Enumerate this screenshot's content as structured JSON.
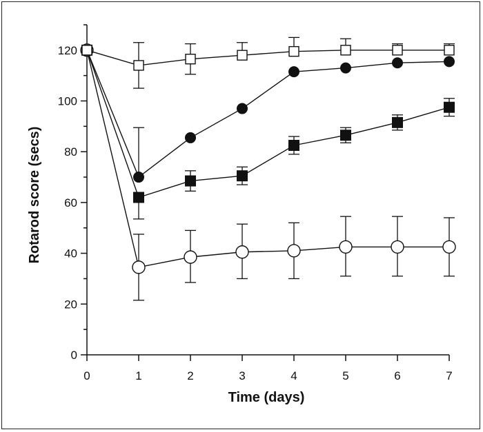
{
  "chart_data": {
    "type": "line",
    "title": "",
    "xlabel": "Time (days)",
    "ylabel": "Rotarod score (secs)",
    "xlim": [
      0,
      7
    ],
    "ylim": [
      0,
      130
    ],
    "x_ticks": [
      0,
      1,
      2,
      3,
      4,
      5,
      6,
      7
    ],
    "y_ticks": [
      0,
      20,
      40,
      60,
      80,
      100,
      120
    ],
    "grid": false,
    "x": [
      0,
      1,
      2,
      3,
      4,
      5,
      6,
      7
    ],
    "series": [
      {
        "marker": "open-square",
        "values": [
          120,
          114,
          116.5,
          118,
          119.5,
          120,
          120,
          120
        ],
        "err_upper": [
          0,
          9,
          6,
          5,
          5.5,
          4.5,
          2.5,
          2.5
        ],
        "err_lower": [
          0,
          9,
          6,
          0,
          0,
          0,
          0,
          0
        ]
      },
      {
        "marker": "filled-circle",
        "values": [
          120,
          70,
          85.5,
          97,
          111.5,
          113,
          115,
          115.5
        ],
        "err_upper": [
          0,
          19.5,
          0,
          0,
          0,
          0,
          0,
          0
        ],
        "err_lower": [
          0,
          0,
          0,
          0,
          0,
          0,
          0,
          0
        ]
      },
      {
        "marker": "filled-square",
        "values": [
          120,
          62,
          68.5,
          70.5,
          82.5,
          86.5,
          91.5,
          97.5
        ],
        "err_upper": [
          0,
          0,
          4,
          3.5,
          3.5,
          3,
          3,
          3.5
        ],
        "err_lower": [
          0,
          8.5,
          4,
          3.5,
          3.5,
          3,
          3,
          3.5
        ]
      },
      {
        "marker": "open-circle",
        "values": [
          120,
          34.5,
          38.5,
          40.5,
          41,
          42.5,
          42.5,
          42.5
        ],
        "err_upper": [
          0,
          13,
          10.5,
          11,
          11,
          12,
          12,
          11.5
        ],
        "err_lower": [
          0,
          13,
          10,
          10.5,
          11,
          11.5,
          11.5,
          11.5
        ]
      }
    ]
  }
}
